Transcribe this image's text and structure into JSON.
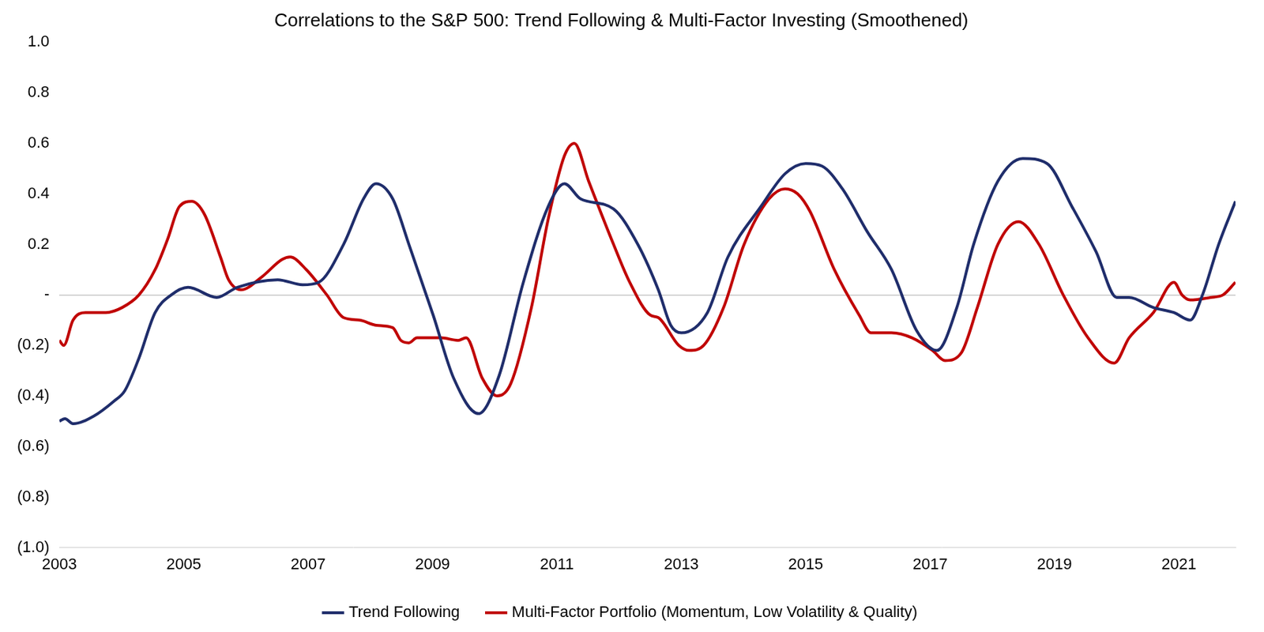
{
  "chart_data": {
    "type": "line",
    "title": "Correlations to the S&P 500: Trend Following & Multi-Factor Investing (Smoothened)",
    "xlim": [
      2003,
      2021.91
    ],
    "xticks": [
      2003,
      2005,
      2007,
      2009,
      2011,
      2013,
      2015,
      2017,
      2019,
      2021
    ],
    "ylim": [
      -1,
      1
    ],
    "yticks": [
      {
        "value": -1,
        "label": "(1.0)"
      },
      {
        "value": -0.8,
        "label": "(0.8)"
      },
      {
        "value": -0.6,
        "label": "(0.6)"
      },
      {
        "value": -0.4,
        "label": "(0.4)"
      },
      {
        "value": -0.2,
        "label": "(0.2)"
      },
      {
        "value": 0,
        "label": "-"
      },
      {
        "value": 0.2,
        "label": "0.2"
      },
      {
        "value": 0.4,
        "label": "0.4"
      },
      {
        "value": 0.6,
        "label": "0.6"
      },
      {
        "value": 0.8,
        "label": "0.8"
      },
      {
        "value": 1,
        "label": "1.0"
      }
    ],
    "legend": "bottom",
    "series": [
      {
        "name": "Trend Following",
        "color": "#1f2d6b",
        "x": [
          2003.0,
          2003.09,
          2003.22,
          2003.55,
          2003.88,
          2004.05,
          2004.28,
          2004.54,
          2004.8,
          2005.07,
          2005.53,
          2005.86,
          2006.51,
          2006.91,
          2007.17,
          2007.57,
          2007.89,
          2008.09,
          2008.36,
          2008.62,
          2009.01,
          2009.34,
          2009.74,
          2010.07,
          2010.46,
          2010.86,
          2011.12,
          2011.38,
          2011.91,
          2012.3,
          2012.63,
          2012.83,
          2013.0,
          2013.42,
          2013.75,
          2014.28,
          2014.67,
          2015.0,
          2015.26,
          2015.59,
          2015.99,
          2016.38,
          2016.78,
          2017.11,
          2017.43,
          2017.7,
          2018.09,
          2018.49,
          2018.88,
          2019.28,
          2019.67,
          2020.0,
          2020.2,
          2020.59,
          2020.92,
          2021.18,
          2021.38,
          2021.64,
          2021.91
        ],
        "values": [
          -0.5,
          -0.49,
          -0.51,
          -0.48,
          -0.42,
          -0.38,
          -0.25,
          -0.07,
          0.0,
          0.03,
          -0.01,
          0.03,
          0.06,
          0.04,
          0.05,
          0.2,
          0.38,
          0.44,
          0.38,
          0.2,
          -0.08,
          -0.33,
          -0.47,
          -0.32,
          0.05,
          0.35,
          0.44,
          0.38,
          0.34,
          0.2,
          0.02,
          -0.12,
          -0.15,
          -0.07,
          0.15,
          0.35,
          0.48,
          0.52,
          0.51,
          0.42,
          0.25,
          0.1,
          -0.14,
          -0.22,
          -0.05,
          0.2,
          0.45,
          0.54,
          0.52,
          0.35,
          0.17,
          -0.01,
          -0.01,
          -0.05,
          -0.07,
          -0.1,
          0.0,
          0.2,
          0.37
        ]
      },
      {
        "name": "Multi-Factor Portfolio (Momentum, Low Volatility & Quality)",
        "color": "#c00000",
        "x": [
          2003.0,
          2003.07,
          2003.22,
          2003.42,
          2003.75,
          2004.01,
          2004.28,
          2004.54,
          2004.74,
          2004.93,
          2005.13,
          2005.33,
          2005.59,
          2005.72,
          2005.92,
          2006.25,
          2006.58,
          2006.71,
          2006.97,
          2007.3,
          2007.57,
          2007.83,
          2008.09,
          2008.36,
          2008.49,
          2008.62,
          2008.75,
          2009.14,
          2009.41,
          2009.54,
          2009.8,
          2010.04,
          2010.26,
          2010.59,
          2010.86,
          2011.12,
          2011.28,
          2011.51,
          2011.91,
          2012.17,
          2012.5,
          2012.63,
          2012.96,
          2013.13,
          2013.36,
          2013.68,
          2014.01,
          2014.41,
          2014.67,
          2014.87,
          2015.07,
          2015.46,
          2015.86,
          2016.05,
          2016.38,
          2016.71,
          2017.04,
          2017.24,
          2017.5,
          2017.76,
          2018.09,
          2018.42,
          2018.75,
          2019.14,
          2019.54,
          2019.96,
          2020.2,
          2020.59,
          2020.92,
          2021.05,
          2021.18,
          2021.51,
          2021.71,
          2021.91
        ],
        "values": [
          -0.18,
          -0.2,
          -0.1,
          -0.07,
          -0.07,
          -0.05,
          0.0,
          0.1,
          0.22,
          0.35,
          0.37,
          0.32,
          0.15,
          0.06,
          0.02,
          0.07,
          0.14,
          0.15,
          0.1,
          0.0,
          -0.09,
          -0.1,
          -0.12,
          -0.13,
          -0.18,
          -0.19,
          -0.17,
          -0.17,
          -0.18,
          -0.17,
          -0.33,
          -0.4,
          -0.35,
          -0.05,
          0.3,
          0.55,
          0.6,
          0.45,
          0.2,
          0.05,
          -0.08,
          -0.09,
          -0.2,
          -0.22,
          -0.2,
          -0.05,
          0.2,
          0.38,
          0.42,
          0.4,
          0.33,
          0.1,
          -0.08,
          -0.15,
          -0.15,
          -0.17,
          -0.22,
          -0.26,
          -0.23,
          -0.05,
          0.2,
          0.29,
          0.2,
          0.0,
          -0.17,
          -0.27,
          -0.17,
          -0.07,
          0.05,
          0.0,
          -0.02,
          -0.01,
          0.0,
          0.05
        ]
      }
    ]
  }
}
